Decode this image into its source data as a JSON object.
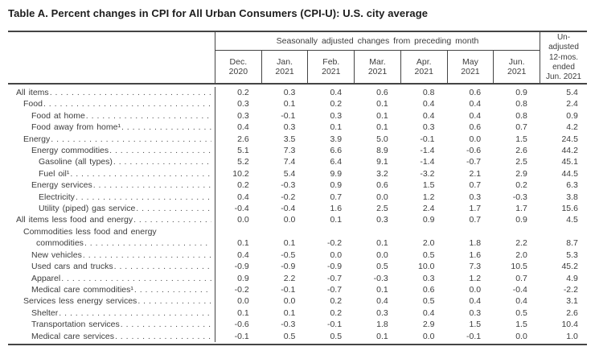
{
  "title": "Table A. Percent changes in CPI for All Urban Consumers (CPI-U): U.S. city average",
  "table": {
    "group_header": "Seasonally adjusted changes from preceding month",
    "unadjusted_header": "Un-\nadjusted\n12-mos.\nended\nJun. 2021",
    "columns": [
      "Dec.\n2020",
      "Jan.\n2021",
      "Feb.\n2021",
      "Mar.\n2021",
      "Apr.\n2021",
      "May\n2021",
      "Jun.\n2021"
    ],
    "rows": [
      {
        "label": "All items",
        "indent": 0,
        "values": [
          "0.2",
          "0.3",
          "0.4",
          "0.6",
          "0.8",
          "0.6",
          "0.9",
          "5.4"
        ]
      },
      {
        "label": "Food",
        "indent": 1,
        "values": [
          "0.3",
          "0.1",
          "0.2",
          "0.1",
          "0.4",
          "0.4",
          "0.8",
          "2.4"
        ]
      },
      {
        "label": "Food at home",
        "indent": 2,
        "values": [
          "0.3",
          "-0.1",
          "0.3",
          "0.1",
          "0.4",
          "0.4",
          "0.8",
          "0.9"
        ]
      },
      {
        "label": "Food away from home¹",
        "indent": 2,
        "values": [
          "0.4",
          "0.3",
          "0.1",
          "0.1",
          "0.3",
          "0.6",
          "0.7",
          "4.2"
        ]
      },
      {
        "label": "Energy",
        "indent": 1,
        "values": [
          "2.6",
          "3.5",
          "3.9",
          "5.0",
          "-0.1",
          "0.0",
          "1.5",
          "24.5"
        ]
      },
      {
        "label": "Energy commodities",
        "indent": 2,
        "values": [
          "5.1",
          "7.3",
          "6.6",
          "8.9",
          "-1.4",
          "-0.6",
          "2.6",
          "44.2"
        ]
      },
      {
        "label": "Gasoline (all types)",
        "indent": 3,
        "values": [
          "5.2",
          "7.4",
          "6.4",
          "9.1",
          "-1.4",
          "-0.7",
          "2.5",
          "45.1"
        ]
      },
      {
        "label": "Fuel oil¹",
        "indent": 3,
        "values": [
          "10.2",
          "5.4",
          "9.9",
          "3.2",
          "-3.2",
          "2.1",
          "2.9",
          "44.5"
        ]
      },
      {
        "label": "Energy services",
        "indent": 2,
        "values": [
          "0.2",
          "-0.3",
          "0.9",
          "0.6",
          "1.5",
          "0.7",
          "0.2",
          "6.3"
        ]
      },
      {
        "label": "Electricity",
        "indent": 3,
        "values": [
          "0.4",
          "-0.2",
          "0.7",
          "0.0",
          "1.2",
          "0.3",
          "-0.3",
          "3.8"
        ]
      },
      {
        "label": "Utility (piped) gas service",
        "indent": 3,
        "values": [
          "-0.4",
          "-0.4",
          "1.6",
          "2.5",
          "2.4",
          "1.7",
          "1.7",
          "15.6"
        ]
      },
      {
        "label": "All items less food and energy",
        "indent": 0,
        "values": [
          "0.0",
          "0.0",
          "0.1",
          "0.3",
          "0.9",
          "0.7",
          "0.9",
          "4.5"
        ]
      },
      {
        "label": "Commodities less food and energy",
        "label2": "commodities",
        "indent": 1,
        "values": [
          "0.1",
          "0.1",
          "-0.2",
          "0.1",
          "2.0",
          "1.8",
          "2.2",
          "8.7"
        ]
      },
      {
        "label": "New vehicles",
        "indent": 2,
        "values": [
          "0.4",
          "-0.5",
          "0.0",
          "0.0",
          "0.5",
          "1.6",
          "2.0",
          "5.3"
        ]
      },
      {
        "label": "Used cars and trucks",
        "indent": 2,
        "values": [
          "-0.9",
          "-0.9",
          "-0.9",
          "0.5",
          "10.0",
          "7.3",
          "10.5",
          "45.2"
        ]
      },
      {
        "label": "Apparel",
        "indent": 2,
        "values": [
          "0.9",
          "2.2",
          "-0.7",
          "-0.3",
          "0.3",
          "1.2",
          "0.7",
          "4.9"
        ]
      },
      {
        "label": "Medical care commodities¹",
        "indent": 2,
        "values": [
          "-0.2",
          "-0.1",
          "-0.7",
          "0.1",
          "0.6",
          "0.0",
          "-0.4",
          "-2.2"
        ]
      },
      {
        "label": "Services less energy services",
        "indent": 1,
        "values": [
          "0.0",
          "0.0",
          "0.2",
          "0.4",
          "0.5",
          "0.4",
          "0.4",
          "3.1"
        ]
      },
      {
        "label": "Shelter",
        "indent": 2,
        "values": [
          "0.1",
          "0.1",
          "0.2",
          "0.3",
          "0.4",
          "0.3",
          "0.5",
          "2.6"
        ]
      },
      {
        "label": "Transportation services",
        "indent": 2,
        "values": [
          "-0.6",
          "-0.3",
          "-0.1",
          "1.8",
          "2.9",
          "1.5",
          "1.5",
          "10.4"
        ]
      },
      {
        "label": "Medical care services",
        "indent": 2,
        "values": [
          "-0.1",
          "0.5",
          "0.5",
          "0.1",
          "0.0",
          "-0.1",
          "0.0",
          "1.0"
        ]
      }
    ]
  }
}
